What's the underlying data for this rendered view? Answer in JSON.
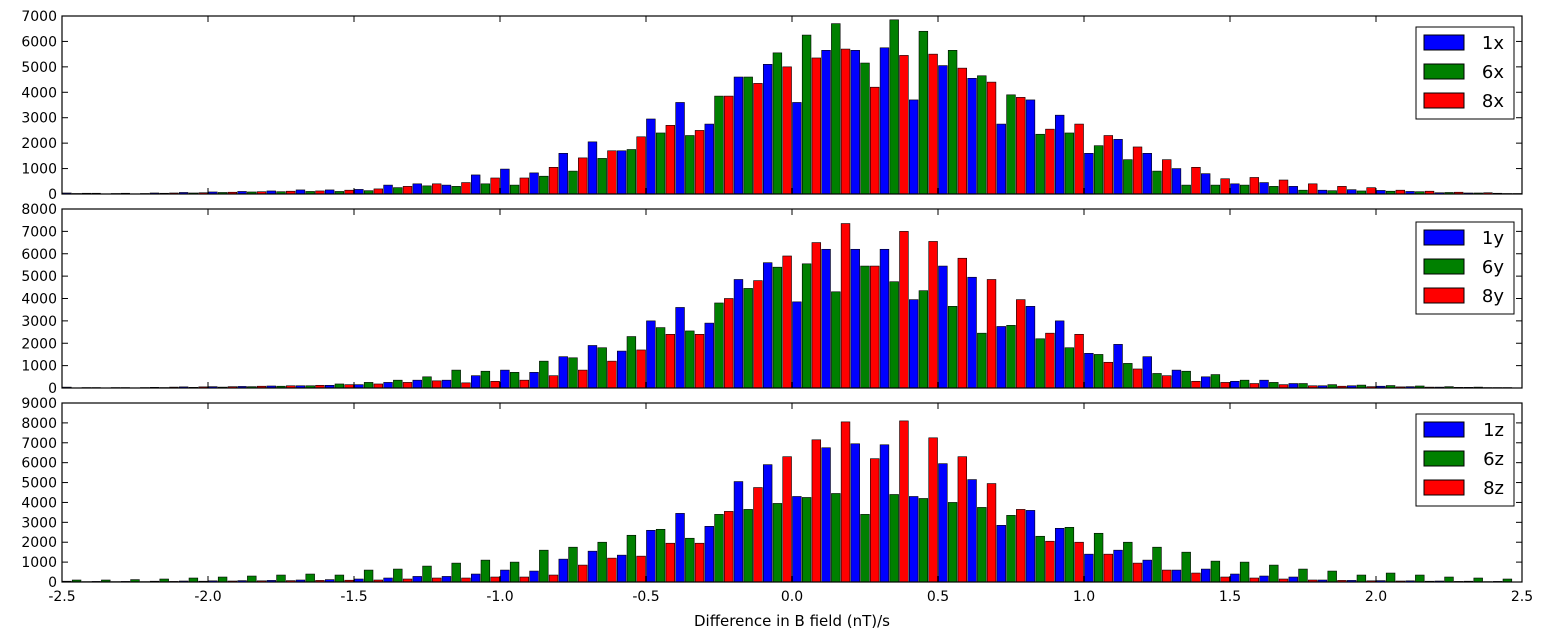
{
  "chart_data": {
    "type": "bar",
    "xlabel": "Difference in B field (nT)/s",
    "xlim": [
      -2.5,
      2.5
    ],
    "xticks": [
      "-2.5",
      "-2.0",
      "-1.5",
      "-1.0",
      "-0.5",
      "0.0",
      "0.5",
      "1.0",
      "1.5",
      "2.0",
      "2.5"
    ],
    "x": [
      -2.45,
      -2.35,
      -2.25,
      -2.15,
      -2.05,
      -1.95,
      -1.85,
      -1.75,
      -1.65,
      -1.55,
      -1.45,
      -1.35,
      -1.25,
      -1.15,
      -1.05,
      -0.95,
      -0.85,
      -0.75,
      -0.65,
      -0.55,
      -0.45,
      -0.35,
      -0.25,
      -0.15,
      -0.05,
      0.05,
      0.15,
      0.25,
      0.35,
      0.45,
      0.55,
      0.65,
      0.75,
      0.85,
      0.95,
      1.05,
      1.15,
      1.25,
      1.35,
      1.45,
      1.55,
      1.65,
      1.75,
      1.85,
      1.95,
      2.05,
      2.15,
      2.25,
      2.35,
      2.45
    ],
    "colors": [
      "#0000ff",
      "#008000",
      "#ff0000"
    ],
    "panels": [
      {
        "ylim": [
          0,
          7000
        ],
        "yticks": [
          "0",
          "1000",
          "2000",
          "3000",
          "4000",
          "5000",
          "6000",
          "7000"
        ],
        "legend_position": "upper right",
        "series": [
          {
            "name": "1x",
            "values": [
              40,
              30,
              30,
              40,
              60,
              80,
              100,
              120,
              160,
              160,
              180,
              350,
              400,
              350,
              750,
              980,
              830,
              1600,
              2050,
              1700,
              2950,
              3600,
              2750,
              4600,
              5100,
              3600,
              5650,
              5650,
              5750,
              3700,
              5050,
              4550,
              2750,
              3700,
              3100,
              1600,
              2150,
              1600,
              1000,
              800,
              400,
              450,
              300,
              150,
              170,
              140,
              100,
              50,
              40,
              30
            ]
          },
          {
            "name": "6x",
            "values": [
              20,
              10,
              10,
              30,
              40,
              60,
              80,
              90,
              100,
              100,
              130,
              250,
              320,
              300,
              400,
              350,
              700,
              900,
              1400,
              1750,
              2400,
              2300,
              3850,
              4600,
              5550,
              6250,
              6700,
              5150,
              6850,
              6400,
              5650,
              4650,
              3900,
              2350,
              2400,
              1900,
              1350,
              900,
              350,
              350,
              350,
              300,
              150,
              130,
              120,
              110,
              90,
              60,
              40,
              20
            ]
          },
          {
            "name": "8x",
            "values": [
              30,
              20,
              20,
              40,
              50,
              70,
              90,
              110,
              120,
              150,
              200,
              300,
              400,
              450,
              630,
              630,
              1050,
              1420,
              1700,
              2250,
              2700,
              2500,
              3850,
              4350,
              5000,
              5350,
              5700,
              4200,
              5450,
              5500,
              4950,
              4400,
              3800,
              2550,
              2750,
              2300,
              1850,
              1350,
              1050,
              600,
              650,
              550,
              400,
              300,
              250,
              150,
              110,
              70,
              50,
              20
            ]
          }
        ]
      },
      {
        "ylim": [
          0,
          8000
        ],
        "yticks": [
          "0",
          "1000",
          "2000",
          "3000",
          "4000",
          "5000",
          "6000",
          "7000",
          "8000"
        ],
        "legend_position": "upper right",
        "series": [
          {
            "name": "1y",
            "values": [
              40,
              20,
              20,
              30,
              50,
              60,
              70,
              90,
              100,
              120,
              150,
              250,
              350,
              350,
              550,
              800,
              700,
              1400,
              1900,
              1650,
              3000,
              3600,
              2900,
              4850,
              5600,
              3850,
              6200,
              6200,
              6200,
              3950,
              5450,
              4950,
              2750,
              3650,
              3000,
              1550,
              1950,
              1400,
              800,
              500,
              300,
              350,
              200,
              100,
              100,
              80,
              60,
              40,
              30,
              20
            ]
          },
          {
            "name": "6y",
            "values": [
              10,
              10,
              10,
              20,
              30,
              40,
              60,
              80,
              100,
              180,
              250,
              350,
              500,
              800,
              750,
              700,
              1200,
              1350,
              1800,
              2300,
              2700,
              2550,
              3800,
              4450,
              5400,
              5550,
              4300,
              5450,
              4750,
              4350,
              3650,
              2450,
              2800,
              2200,
              1800,
              1500,
              1100,
              650,
              750,
              600,
              350,
              250,
              200,
              150,
              130,
              110,
              90,
              60,
              40,
              20
            ]
          },
          {
            "name": "8y",
            "values": [
              20,
              20,
              20,
              40,
              50,
              60,
              80,
              100,
              120,
              150,
              180,
              250,
              320,
              230,
              300,
              350,
              550,
              800,
              1200,
              1700,
              2400,
              2400,
              4000,
              4800,
              5900,
              6500,
              7350,
              5450,
              7000,
              6550,
              5800,
              4850,
              3950,
              2450,
              2400,
              1150,
              850,
              550,
              300,
              250,
              200,
              150,
              100,
              80,
              60,
              50,
              40,
              30,
              20,
              10
            ]
          }
        ]
      },
      {
        "ylim": [
          0,
          9000
        ],
        "yticks": [
          "0",
          "1000",
          "2000",
          "3000",
          "4000",
          "5000",
          "6000",
          "7000",
          "8000",
          "9000"
        ],
        "legend_position": "upper right",
        "series": [
          {
            "name": "1z",
            "values": [
              40,
              30,
              30,
              40,
              50,
              60,
              70,
              80,
              100,
              120,
              150,
              200,
              280,
              280,
              400,
              600,
              550,
              1150,
              1550,
              1350,
              2600,
              3450,
              2800,
              5050,
              5900,
              4300,
              6750,
              6950,
              6900,
              4300,
              5950,
              5150,
              2850,
              3600,
              2700,
              1400,
              1600,
              1100,
              600,
              650,
              400,
              300,
              250,
              100,
              80,
              70,
              60,
              50,
              40,
              30
            ]
          },
          {
            "name": "6z",
            "values": [
              100,
              100,
              120,
              150,
              200,
              250,
              300,
              350,
              400,
              350,
              600,
              650,
              800,
              950,
              1100,
              1000,
              1600,
              1750,
              2000,
              2350,
              2650,
              2200,
              3400,
              3650,
              3950,
              4250,
              4450,
              3400,
              4400,
              4200,
              4000,
              3750,
              3350,
              2300,
              2750,
              2450,
              2000,
              1750,
              1500,
              1050,
              1000,
              850,
              650,
              550,
              350,
              450,
              350,
              250,
              200,
              150
            ]
          },
          {
            "name": "8z",
            "values": [
              20,
              20,
              20,
              30,
              40,
              50,
              60,
              70,
              80,
              90,
              100,
              150,
              200,
              200,
              250,
              250,
              350,
              850,
              1200,
              1300,
              1950,
              1950,
              3550,
              4750,
              6300,
              7150,
              8050,
              6200,
              8100,
              7250,
              6300,
              4950,
              3650,
              2050,
              2000,
              1400,
              950,
              600,
              450,
              250,
              200,
              150,
              100,
              80,
              60,
              50,
              40,
              30,
              20,
              10
            ]
          }
        ]
      }
    ]
  }
}
